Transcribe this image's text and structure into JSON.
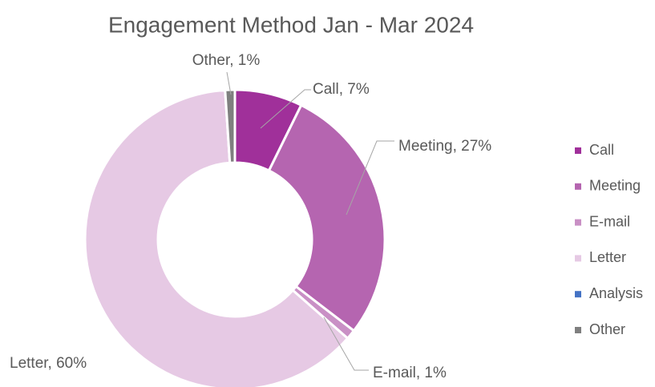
{
  "chart_data": {
    "type": "donut",
    "title": "Engagement Method Jan - Mar 2024",
    "categories": [
      "Call",
      "Meeting",
      "E-mail",
      "Letter",
      "Analysis",
      "Other"
    ],
    "values": [
      7,
      27,
      1,
      60,
      0,
      1
    ],
    "value_labels": [
      "Call, 7%",
      "Meeting, 27%",
      "E-mail, 1%",
      "Letter, 60%",
      null,
      "Other, 1%"
    ],
    "colors": [
      "#a0309a",
      "#b565b0",
      "#c990c5",
      "#e6c9e4",
      "#4472c4",
      "#7f7f7f"
    ],
    "legend": "right"
  }
}
